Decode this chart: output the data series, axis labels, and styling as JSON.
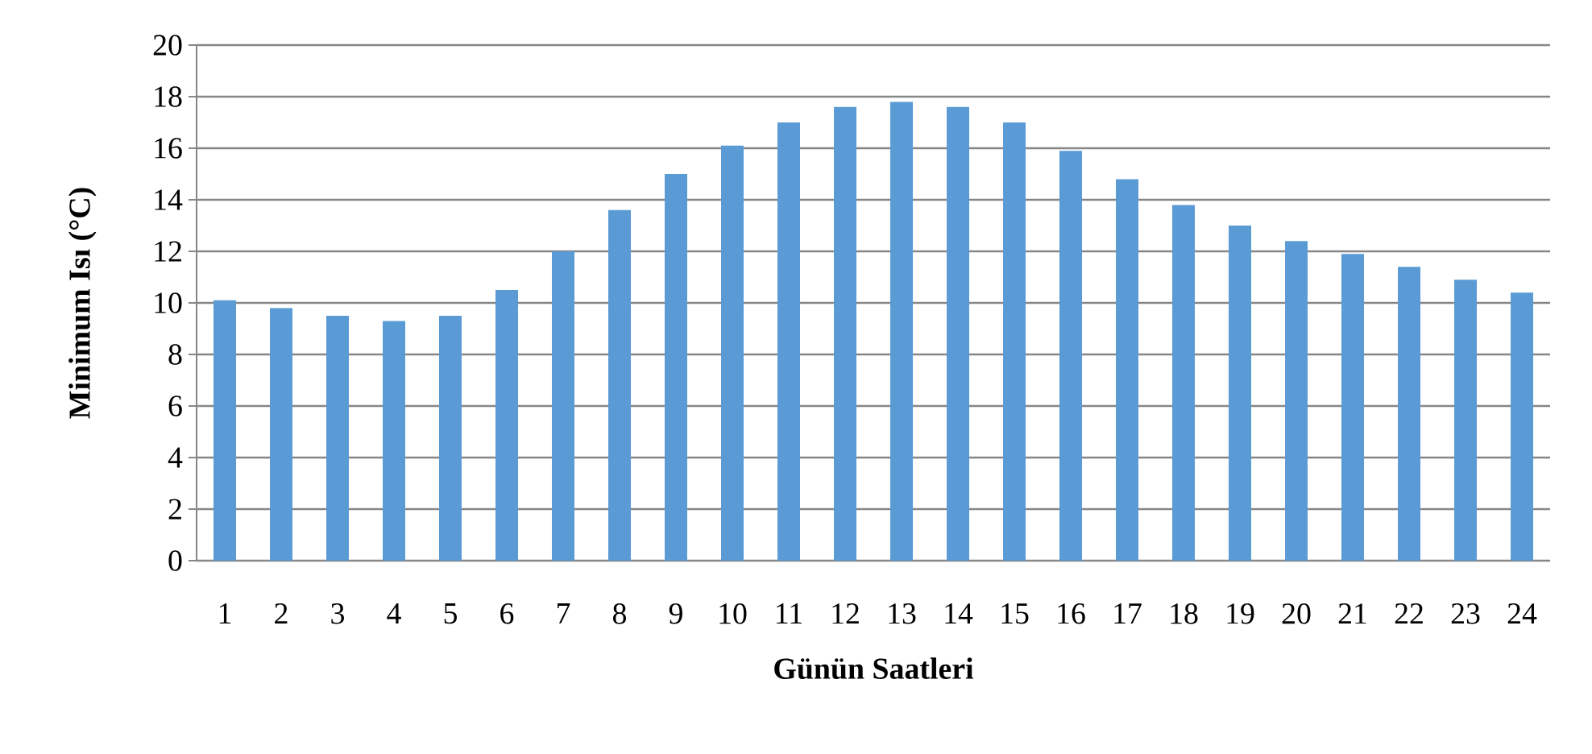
{
  "chart_data": {
    "type": "bar",
    "xlabel": "Günün Saatleri",
    "ylabel": "Minimum Isı (°C)",
    "categories": [
      "1",
      "2",
      "3",
      "4",
      "5",
      "6",
      "7",
      "8",
      "9",
      "10",
      "11",
      "12",
      "13",
      "14",
      "15",
      "16",
      "17",
      "18",
      "19",
      "20",
      "21",
      "22",
      "23",
      "24"
    ],
    "values": [
      10.1,
      9.8,
      9.5,
      9.3,
      9.5,
      10.5,
      12.0,
      13.6,
      15.0,
      16.1,
      17.0,
      17.6,
      17.8,
      17.6,
      17.0,
      15.9,
      14.8,
      13.8,
      13.0,
      12.4,
      11.9,
      11.4,
      10.9,
      10.4
    ],
    "color": "#5b9bd5",
    "ylim": [
      0,
      20
    ],
    "yticks": [
      0,
      2,
      4,
      6,
      8,
      10,
      12,
      14,
      16,
      18,
      20
    ],
    "grid": "y"
  }
}
